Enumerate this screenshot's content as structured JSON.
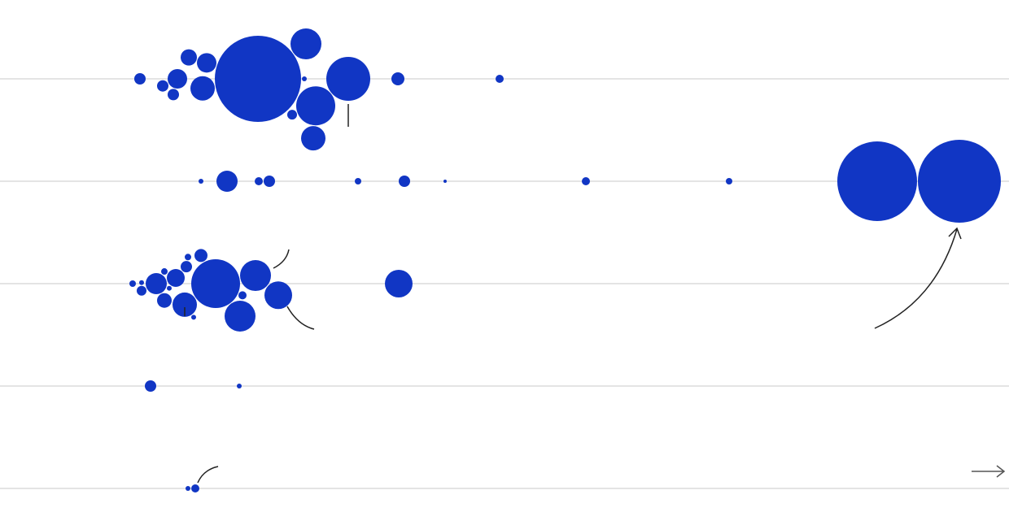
{
  "chart_data": {
    "type": "beeswarm",
    "color": "#1136c4",
    "xlim": [
      0,
      1240
    ],
    "rows": [
      {
        "x": [
          172,
          200,
          213,
          218,
          232,
          249,
          254,
          317,
          359,
          374,
          376,
          385,
          388,
          428,
          489,
          614
        ],
        "size": [
          7,
          7,
          7,
          12,
          10,
          15,
          12,
          53,
          6,
          3,
          19,
          15,
          24,
          27,
          8,
          5
        ]
      },
      {
        "x": [
          247,
          279,
          318,
          331,
          440,
          497,
          547,
          720,
          896,
          1078,
          1179
        ],
        "size": [
          3,
          13,
          5,
          7,
          4,
          7,
          2,
          5,
          4,
          49,
          51
        ]
      },
      {
        "x": [
          163,
          174,
          174,
          192,
          202,
          202,
          208,
          216,
          227,
          229,
          231,
          238,
          247,
          265,
          295,
          298,
          314,
          342,
          490
        ],
        "size": [
          4,
          3,
          6,
          13,
          4,
          9,
          3,
          11,
          15,
          7,
          4,
          3,
          8,
          30,
          19,
          5,
          19,
          17,
          17
        ]
      },
      {
        "x": [
          185,
          294
        ],
        "size": [
          7,
          3
        ]
      },
      {
        "x": [
          231,
          240
        ],
        "size": [
          3,
          5
        ]
      }
    ]
  }
}
